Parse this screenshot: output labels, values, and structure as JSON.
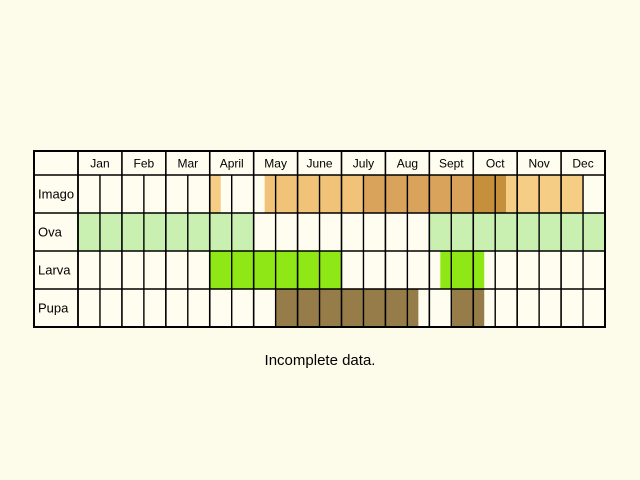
{
  "chart_data": {
    "type": "table",
    "months": [
      "Jan",
      "Feb",
      "Mar",
      "April",
      "May",
      "June",
      "July",
      "Aug",
      "Sept",
      "Oct",
      "Nov",
      "Dec"
    ],
    "stages": [
      {
        "name": "Imago",
        "segments": [
          {
            "start": 3.0,
            "end": 3.25,
            "color": "#f5cd85"
          },
          {
            "start": 4.25,
            "end": 6.5,
            "color": "#f0c378"
          },
          {
            "start": 6.5,
            "end": 9.0,
            "color": "#d9a35c"
          },
          {
            "start": 9.0,
            "end": 9.75,
            "color": "#c58f3c"
          },
          {
            "start": 9.75,
            "end": 11.5,
            "color": "#f5cd85"
          }
        ]
      },
      {
        "name": "Ova",
        "segments": [
          {
            "start": 0.0,
            "end": 4.0,
            "color": "#c9efb1"
          },
          {
            "start": 8.0,
            "end": 12.0,
            "color": "#c9efb1"
          }
        ]
      },
      {
        "name": "Larva",
        "segments": [
          {
            "start": 3.0,
            "end": 6.0,
            "color": "#8fe815"
          },
          {
            "start": 8.25,
            "end": 9.25,
            "color": "#8fe815"
          }
        ]
      },
      {
        "name": "Pupa",
        "segments": [
          {
            "start": 4.5,
            "end": 7.75,
            "color": "#957c48"
          },
          {
            "start": 8.5,
            "end": 9.25,
            "color": "#957c48"
          }
        ]
      }
    ]
  },
  "caption": "Incomplete data."
}
